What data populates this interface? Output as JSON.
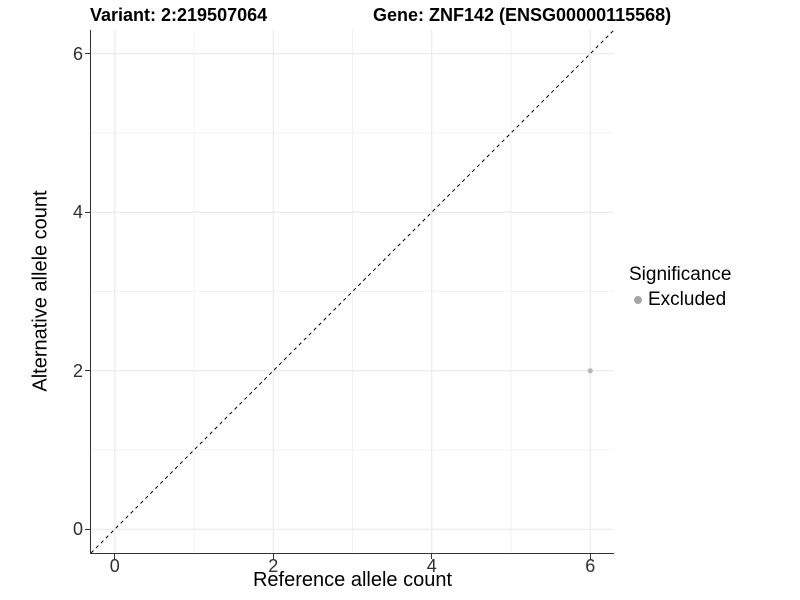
{
  "titles": {
    "variant": "Variant: 2:219507064",
    "gene": "Gene: ZNF142 (ENSG00000115568)"
  },
  "chart_data": {
    "type": "scatter",
    "xlabel": "Reference allele count",
    "ylabel": "Alternative allele count",
    "xlim": [
      -0.3,
      6.3
    ],
    "ylim": [
      -0.3,
      6.3
    ],
    "x_ticks": [
      0,
      2,
      4,
      6
    ],
    "y_ticks": [
      0,
      2,
      4,
      6
    ],
    "minor_gridlines": [
      1,
      3,
      5
    ],
    "grid": true,
    "identity_line": {
      "style": "dashed",
      "from": [
        -0.3,
        -0.3
      ],
      "to": [
        6.3,
        6.3
      ],
      "color": "#000000"
    },
    "series": [
      {
        "name": "Excluded",
        "color": "#b9b9b9",
        "points": [
          {
            "x": 6,
            "y": 2
          }
        ]
      }
    ],
    "legend": {
      "title": "Significance",
      "position": "right",
      "items": [
        {
          "label": "Excluded",
          "color": "#a6a6a6"
        }
      ]
    }
  },
  "colors": {
    "background": "#ffffff",
    "axis_line": "#333333",
    "grid_major": "#e7e7e7",
    "grid_minor": "#f3f3f3",
    "tick_label": "#303030",
    "point": "#b9b9b9"
  }
}
